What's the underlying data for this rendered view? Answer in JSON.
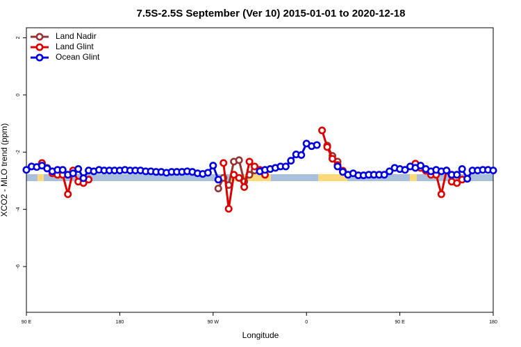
{
  "chart_data": {
    "type": "line",
    "title": "7.5S-2.5S September (Ver 10)   2015-01-01 to 2020-12-18",
    "x_label": "Longitude",
    "y_label": "XCO2 - MLO trend (ppm)",
    "x": [
      90,
      95,
      100,
      105,
      110,
      115,
      120,
      125,
      130,
      135,
      140,
      145,
      150,
      155,
      160,
      165,
      170,
      175,
      180,
      185,
      190,
      195,
      200,
      205,
      210,
      215,
      220,
      225,
      230,
      235,
      240,
      245,
      250,
      255,
      260,
      265,
      270,
      275,
      280,
      285,
      290,
      295,
      300,
      305,
      310,
      315,
      320,
      325,
      330,
      335,
      340,
      345,
      350,
      355,
      360,
      365,
      370,
      375,
      380,
      385,
      390,
      395,
      400,
      405,
      410,
      415,
      420,
      425,
      430,
      435,
      440,
      445,
      450,
      455,
      460,
      465,
      470,
      475,
      480,
      485,
      490,
      495,
      500,
      505,
      510,
      515,
      520,
      525,
      530,
      535,
      540
    ],
    "xlim": [
      90,
      540
    ],
    "xticks": [
      {
        "value": 90,
        "label": "90 E"
      },
      180,
      {
        "value": 270,
        "label": "90 W"
      },
      {
        "value": 360,
        "label": "0"
      },
      {
        "value": 450,
        "label": "90 E"
      },
      {
        "value": 540,
        "label": "180"
      }
    ],
    "ylim": [
      -7.6,
      2.35
    ],
    "yticks": [
      2,
      0,
      -2,
      -4,
      -6
    ],
    "legend": "top-left",
    "series": [
      {
        "name": "Land Nadir",
        "color": "#993333",
        "values": [
          null,
          null,
          null,
          -2.47,
          -2.55,
          null,
          null,
          null,
          null,
          null,
          null,
          null,
          null,
          null,
          null,
          null,
          null,
          null,
          null,
          null,
          null,
          null,
          null,
          null,
          null,
          null,
          null,
          null,
          null,
          null,
          null,
          null,
          null,
          null,
          null,
          null,
          null,
          -3.27,
          -2.9,
          -3.15,
          -2.33,
          -2.28,
          -3.03,
          -2.79,
          -2.64,
          null,
          null,
          null,
          null,
          null,
          null,
          null,
          null,
          null,
          null,
          null,
          null,
          null,
          -1.77,
          -2.13,
          -2.33,
          -2.67,
          null,
          null,
          null,
          null,
          null,
          null,
          null,
          null,
          null,
          null,
          null,
          null,
          null,
          -2.47,
          -2.55,
          null,
          null,
          null,
          null,
          null,
          null,
          null,
          null,
          null,
          null,
          null,
          null,
          null,
          null
        ]
      },
      {
        "name": "Land Glint",
        "color": "#e00000",
        "values": [
          null,
          null,
          null,
          -2.38,
          -2.57,
          -2.74,
          -2.79,
          -2.79,
          -3.47,
          -2.64,
          -3.03,
          -3.08,
          -2.96,
          null,
          null,
          null,
          null,
          null,
          null,
          null,
          null,
          null,
          null,
          null,
          null,
          null,
          null,
          null,
          null,
          null,
          null,
          null,
          null,
          null,
          null,
          null,
          null,
          null,
          -2.38,
          -3.98,
          -2.79,
          -2.9,
          -3.22,
          -2.33,
          -2.5,
          -2.62,
          -2.79,
          null,
          null,
          null,
          null,
          null,
          null,
          null,
          null,
          null,
          null,
          -1.24,
          -1.82,
          -2.23,
          -2.45,
          -2.65,
          null,
          null,
          null,
          null,
          null,
          null,
          null,
          null,
          null,
          null,
          null,
          null,
          null,
          -2.4,
          -2.55,
          -2.65,
          -2.79,
          -2.79,
          -3.47,
          -2.64,
          -3.03,
          -3.08,
          -2.96,
          null,
          null,
          null,
          null,
          null,
          null
        ]
      },
      {
        "name": "Ocean Glint",
        "color": "#0000e0",
        "values": [
          -2.62,
          -2.5,
          -2.52,
          -2.47,
          -2.57,
          -2.67,
          -2.62,
          -2.62,
          -2.79,
          -2.74,
          -2.59,
          -2.91,
          -2.64,
          -2.67,
          -2.62,
          -2.64,
          -2.64,
          -2.64,
          -2.64,
          -2.62,
          -2.64,
          -2.64,
          -2.64,
          -2.67,
          -2.67,
          -2.69,
          -2.69,
          -2.72,
          -2.69,
          -2.69,
          -2.69,
          -2.67,
          -2.69,
          -2.74,
          -2.76,
          -2.72,
          -2.47,
          -2.96,
          null,
          null,
          null,
          null,
          null,
          null,
          null,
          -2.67,
          -2.62,
          -2.59,
          -2.55,
          -2.5,
          -2.5,
          -2.3,
          -2.08,
          -2.1,
          -1.7,
          -1.79,
          -1.75,
          null,
          null,
          null,
          -2.5,
          -2.69,
          -2.79,
          -2.74,
          -2.81,
          -2.81,
          -2.79,
          -2.79,
          -2.79,
          -2.79,
          -2.67,
          -2.55,
          -2.59,
          -2.62,
          -2.5,
          -2.55,
          -2.47,
          -2.59,
          -2.67,
          -2.62,
          -2.67,
          -2.64,
          -2.79,
          -2.79,
          -2.59,
          -2.93,
          -2.64,
          -2.64,
          -2.62,
          -2.62,
          -2.64
        ]
      }
    ]
  }
}
